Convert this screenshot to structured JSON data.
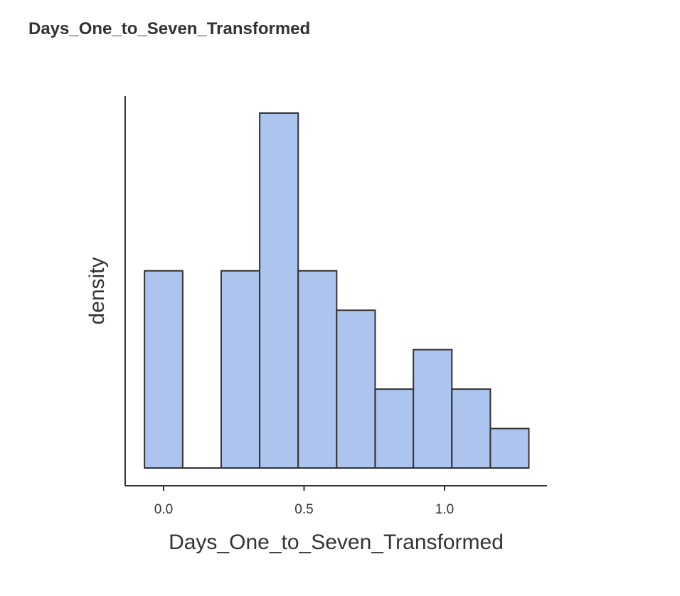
{
  "page": {
    "title": "Days_One_to_Seven_Transformed"
  },
  "chart_data": {
    "type": "bar",
    "subtype": "histogram",
    "title": "",
    "xlabel": "Days_One_to_Seven_Transformed",
    "ylabel": "density",
    "xlim": [
      -0.12,
      1.37
    ],
    "x_ticks": [
      0.0,
      0.5,
      1.0
    ],
    "x_tick_labels": [
      "0.0",
      "0.5",
      "1.0"
    ],
    "y_ticks_shown": false,
    "bin_width": 0.137,
    "bins": [
      {
        "x0": -0.068,
        "x1": 0.068,
        "density": 1.0
      },
      {
        "x0": 0.068,
        "x1": 0.205,
        "density": 0.0
      },
      {
        "x0": 0.205,
        "x1": 0.342,
        "density": 1.0
      },
      {
        "x0": 0.342,
        "x1": 0.479,
        "density": 1.8
      },
      {
        "x0": 0.479,
        "x1": 0.616,
        "density": 1.0
      },
      {
        "x0": 0.616,
        "x1": 0.753,
        "density": 0.8
      },
      {
        "x0": 0.753,
        "x1": 0.889,
        "density": 0.4
      },
      {
        "x0": 0.889,
        "x1": 1.026,
        "density": 0.6
      },
      {
        "x0": 1.026,
        "x1": 1.163,
        "density": 0.4
      },
      {
        "x0": 1.163,
        "x1": 1.3,
        "density": 0.2
      }
    ],
    "ylim": [
      0,
      1.89
    ],
    "grid": false,
    "legend": "none",
    "colors": {
      "bar_fill": "#adc4ee",
      "bar_stroke": "#333333",
      "axis": "#333333"
    }
  }
}
